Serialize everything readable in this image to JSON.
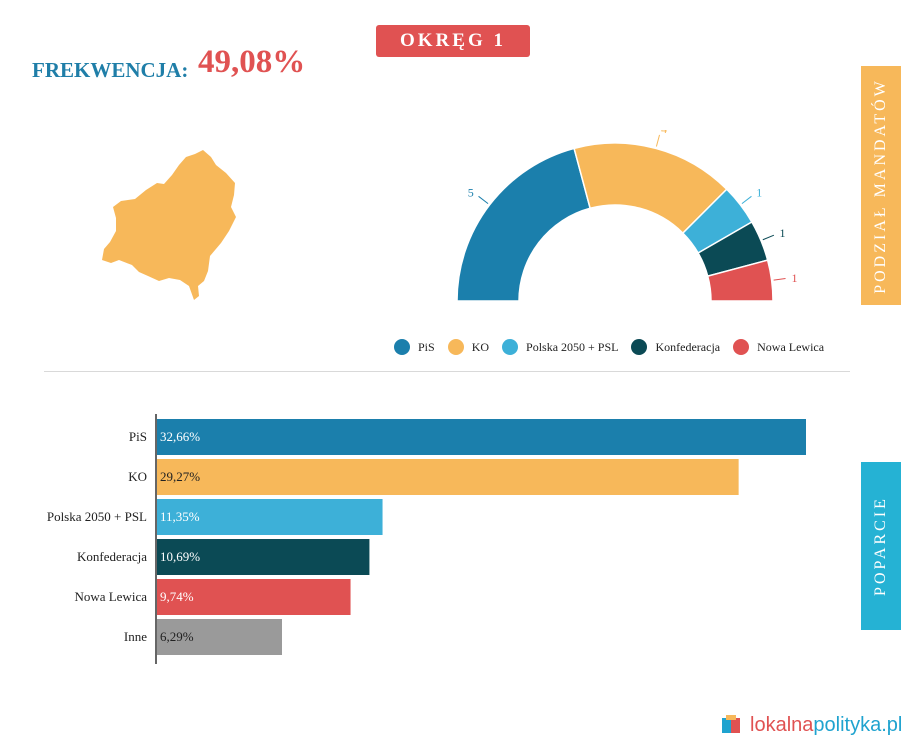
{
  "header": {
    "district": "OKRĘG 1",
    "turnout_label": "FREKWENCJA:",
    "turnout_value": "49,08%"
  },
  "side_tabs": {
    "seats": "PODZIAŁ MANDATÓW",
    "support": "POPARCIE"
  },
  "brand": {
    "part1": "lokalna",
    "part2": "polityka.pl"
  },
  "colors": {
    "pis": "#1b7fac",
    "ko": "#f7b85a",
    "polska2050": "#3db0d8",
    "konfederacja": "#0b4a55",
    "lewica": "#e05252",
    "inne": "#9a9a9a"
  },
  "chart_data": [
    {
      "type": "pie",
      "variant": "semicircle",
      "title": "",
      "categories": [
        "PiS",
        "KO",
        "Polska 2050 + PSL",
        "Konfederacja",
        "Nowa Lewica"
      ],
      "values": [
        5,
        4,
        1,
        1,
        1
      ],
      "colors": [
        "#1b7fac",
        "#f7b85a",
        "#3db0d8",
        "#0b4a55",
        "#e05252"
      ],
      "legend": "bottom"
    },
    {
      "type": "bar",
      "orientation": "horizontal",
      "title": "",
      "categories": [
        "PiS",
        "KO",
        "Polska 2050 + PSL",
        "Konfederacja",
        "Nowa Lewica",
        "Inne"
      ],
      "values": [
        32.66,
        29.27,
        11.35,
        10.69,
        9.74,
        6.29
      ],
      "labels": [
        "32,66%",
        "29,27%",
        "11,35%",
        "10,69%",
        "9,74%",
        "6,29%"
      ],
      "colors": [
        "#1b7fac",
        "#f7b85a",
        "#3db0d8",
        "#0b4a55",
        "#e05252",
        "#9a9a9a"
      ],
      "label_colors": [
        "#ffffff",
        "#222222",
        "#ffffff",
        "#ffffff",
        "#ffffff",
        "#222222"
      ],
      "grid": false
    }
  ]
}
